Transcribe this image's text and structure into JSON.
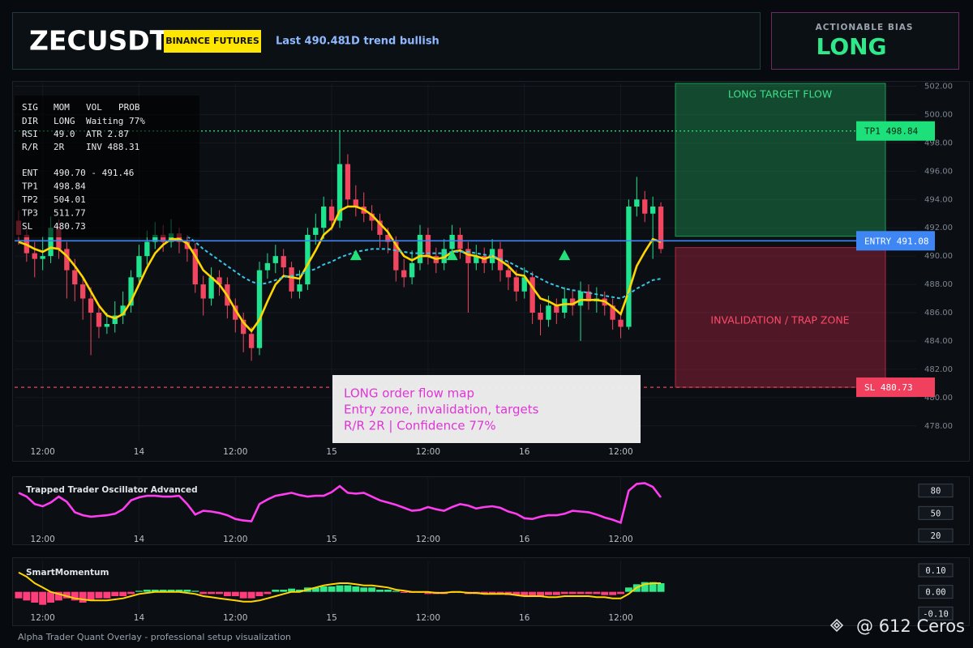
{
  "header": {
    "symbol": "ZECUSDT",
    "exchange": "BINANCE FUTURES",
    "last": "Last 490.48",
    "trend": "1D trend bullish"
  },
  "bias": {
    "label": "ACTIONABLE BIAS",
    "value": "LONG"
  },
  "info_panel": {
    "header": [
      "SIG",
      "MOM",
      "VOL",
      "PROB"
    ],
    "rows": [
      [
        "DIR",
        "LONG",
        "Waiting 77%"
      ],
      [
        "RSI",
        "49.0",
        "ATR 2.87"
      ],
      [
        "R/R",
        "2R",
        "INV 488.31"
      ]
    ],
    "levels": [
      [
        "ENT",
        "490.70 - 491.46"
      ],
      [
        "TP1",
        "498.84"
      ],
      [
        "TP2",
        "504.01"
      ],
      [
        "TP3",
        "511.77"
      ],
      [
        "SL",
        "480.73"
      ]
    ]
  },
  "annotation": {
    "lines": [
      "LONG order flow map",
      "Entry zone, invalidation, targets",
      "R/R 2R | Confidence 77%"
    ]
  },
  "footer": "Alpha Trader Quant Overlay - professional setup visualization",
  "watermark": "@ 612 Ceros",
  "chart_data": [
    {
      "type": "candlestick",
      "categories": [
        null,
        null,
        null,
        "12:00",
        null,
        null,
        null,
        null,
        null,
        null,
        null,
        null,
        null,
        null,
        null,
        "14",
        null,
        null,
        null,
        null,
        null,
        null,
        null,
        null,
        null,
        null,
        null,
        "12:00",
        null,
        null,
        null,
        null,
        null,
        null,
        null,
        null,
        null,
        null,
        null,
        "15",
        null,
        null,
        null,
        null,
        null,
        null,
        null,
        null,
        null,
        null,
        null,
        "12:00",
        null,
        null,
        null,
        null,
        null,
        null,
        null,
        null,
        null,
        null,
        null,
        "16",
        null,
        null,
        null,
        null,
        null,
        null,
        null,
        null,
        null,
        null,
        null,
        "12:00",
        null,
        null,
        null,
        null,
        null
      ],
      "open": [
        492.5,
        491.5,
        490.2,
        489.8,
        490.0,
        492.0,
        490.5,
        489.0,
        488.0,
        487.0,
        486.0,
        485.0,
        485.2,
        485.8,
        486.5,
        488.5,
        490.0,
        491.0,
        491.5,
        491.0,
        491.6,
        491.0,
        490.5,
        488.0,
        487.0,
        488.5,
        488.0,
        486.5,
        485.5,
        484.5,
        483.5,
        489.0,
        489.5,
        490.0,
        489.2,
        487.5,
        488.0,
        491.5,
        492.0,
        493.5,
        492.5,
        496.5,
        494.0,
        493.5,
        493.0,
        492.5,
        491.5,
        491.0,
        489.0,
        488.5,
        489.5,
        491.5,
        490.0,
        489.5,
        490.5,
        491.5,
        490.5,
        489.5,
        490.0,
        489.5,
        490.5,
        489.0,
        488.5,
        487.5,
        488.5,
        486.0,
        485.5,
        486.5,
        486.0,
        487.0,
        486.5,
        487.5,
        486.8,
        487.0,
        486.5,
        485.5,
        485.0,
        493.5,
        494.0,
        493.0,
        493.5
      ],
      "high": [
        493.2,
        492.0,
        491.0,
        491.4,
        492.8,
        492.6,
        491.0,
        489.8,
        488.6,
        487.8,
        486.6,
        486.0,
        486.8,
        487.5,
        489.0,
        490.8,
        491.8,
        492.4,
        492.2,
        492.6,
        492.0,
        491.5,
        490.9,
        488.6,
        489.2,
        489.0,
        488.5,
        487.0,
        486.0,
        485.0,
        489.6,
        490.2,
        490.8,
        490.5,
        489.6,
        489.0,
        492.0,
        493.0,
        494.2,
        494.0,
        498.8,
        497.2,
        495.0,
        494.5,
        493.6,
        493.0,
        492.0,
        491.4,
        489.8,
        490.4,
        492.2,
        492.0,
        490.6,
        491.2,
        492.2,
        492.0,
        491.0,
        490.8,
        490.6,
        491.2,
        491.0,
        489.6,
        489.0,
        489.2,
        488.9,
        486.6,
        487.2,
        487.0,
        487.8,
        487.6,
        488.2,
        488.0,
        487.8,
        487.5,
        487.0,
        486.0,
        494.0,
        495.6,
        494.6,
        494.2,
        493.8
      ],
      "low": [
        490.8,
        489.6,
        488.5,
        489.0,
        489.5,
        489.8,
        487.0,
        486.8,
        485.5,
        483.0,
        484.2,
        484.5,
        484.6,
        485.2,
        486.0,
        488.0,
        489.4,
        490.5,
        490.3,
        490.6,
        490.2,
        489.6,
        487.4,
        485.8,
        486.5,
        487.2,
        485.6,
        484.6,
        483.2,
        482.6,
        483.0,
        488.4,
        488.8,
        488.5,
        487.0,
        487.0,
        487.6,
        490.8,
        491.2,
        491.8,
        492.0,
        493.5,
        492.8,
        492.4,
        491.8,
        490.6,
        490.2,
        488.2,
        487.8,
        488.0,
        489.0,
        489.4,
        488.8,
        489.0,
        490.0,
        489.8,
        486.0,
        489.0,
        488.8,
        489.0,
        488.2,
        487.6,
        486.8,
        487.0,
        485.2,
        484.4,
        485.0,
        485.2,
        485.6,
        485.8,
        484.0,
        486.2,
        486.0,
        485.8,
        484.8,
        484.2,
        484.8,
        492.8,
        492.4,
        489.8,
        490.2
      ],
      "close": [
        491.5,
        490.2,
        489.8,
        490.0,
        492.0,
        490.5,
        489.0,
        488.0,
        487.0,
        486.0,
        485.0,
        485.2,
        485.8,
        486.5,
        488.5,
        490.0,
        491.0,
        491.5,
        491.0,
        491.6,
        491.0,
        490.5,
        488.0,
        487.0,
        488.5,
        488.0,
        486.5,
        485.5,
        484.5,
        483.5,
        489.0,
        489.5,
        490.0,
        489.2,
        487.5,
        488.0,
        491.5,
        492.0,
        493.5,
        492.5,
        496.5,
        494.0,
        493.5,
        493.0,
        492.5,
        491.5,
        491.0,
        489.0,
        488.5,
        489.5,
        491.5,
        490.0,
        489.5,
        490.5,
        491.5,
        490.5,
        489.5,
        490.0,
        489.5,
        490.5,
        489.0,
        488.5,
        487.5,
        488.5,
        486.0,
        485.5,
        486.5,
        486.0,
        487.0,
        486.5,
        487.5,
        486.8,
        487.0,
        486.5,
        485.5,
        485.0,
        493.5,
        494.0,
        493.0,
        493.5,
        490.5
      ],
      "up_color": "#1fe38e",
      "down_color": "#f0465f",
      "series": [
        {
          "color": "#ffd600",
          "style": "solid",
          "values": [
            491.0,
            490.8,
            490.5,
            490.3,
            490.6,
            490.5,
            490.0,
            489.3,
            488.5,
            487.5,
            486.5,
            485.8,
            485.6,
            485.9,
            486.8,
            488.0,
            489.2,
            490.2,
            490.8,
            491.2,
            491.2,
            490.9,
            490.0,
            489.0,
            488.5,
            488.0,
            487.2,
            486.2,
            485.3,
            484.7,
            485.5,
            486.8,
            488.0,
            488.6,
            488.5,
            488.4,
            489.4,
            490.4,
            491.5,
            492.0,
            493.2,
            493.5,
            493.5,
            493.3,
            492.9,
            492.3,
            491.7,
            490.8,
            490.0,
            489.7,
            490.0,
            490.0,
            489.8,
            489.9,
            490.3,
            490.4,
            490.1,
            490.0,
            489.8,
            490.0,
            489.7,
            489.3,
            488.7,
            488.6,
            487.8,
            487.0,
            486.8,
            486.5,
            486.6,
            486.6,
            486.9,
            486.9,
            486.9,
            486.8,
            486.4,
            485.9,
            487.5,
            489.3,
            490.3,
            491.2,
            491.0
          ]
        },
        {
          "color": "#36c6e6",
          "style": "dashed",
          "values": [
            null,
            null,
            null,
            null,
            null,
            null,
            null,
            null,
            null,
            null,
            null,
            null,
            null,
            null,
            null,
            null,
            null,
            null,
            null,
            null,
            null,
            491.4,
            491.0,
            490.5,
            490.1,
            489.7,
            489.3,
            488.9,
            488.5,
            488.2,
            488.0,
            488.1,
            488.3,
            488.5,
            488.6,
            488.7,
            488.9,
            489.1,
            489.4,
            489.6,
            489.9,
            490.1,
            490.3,
            490.4,
            490.5,
            490.5,
            490.5,
            490.4,
            490.3,
            490.2,
            490.2,
            490.2,
            490.2,
            490.2,
            490.3,
            490.3,
            490.3,
            490.2,
            490.1,
            490.0,
            489.8,
            489.6,
            489.3,
            489.0,
            488.7,
            488.4,
            488.1,
            487.9,
            487.7,
            487.6,
            487.5,
            487.4,
            487.3,
            487.2,
            487.1,
            487.0,
            487.3,
            487.7,
            488.0,
            488.3,
            488.4
          ]
        }
      ],
      "signals": {
        "color": "#22e07a",
        "values": [
          null,
          null,
          null,
          null,
          null,
          null,
          null,
          null,
          null,
          null,
          null,
          null,
          null,
          null,
          null,
          null,
          null,
          null,
          null,
          null,
          null,
          null,
          null,
          null,
          null,
          null,
          null,
          null,
          null,
          null,
          null,
          null,
          null,
          null,
          null,
          null,
          null,
          null,
          null,
          null,
          null,
          null,
          490.0,
          null,
          null,
          null,
          null,
          null,
          null,
          null,
          null,
          null,
          null,
          null,
          490.0,
          null,
          null,
          null,
          null,
          null,
          null,
          null,
          null,
          null,
          null,
          null,
          null,
          null,
          490.0,
          null,
          null,
          null,
          null,
          null,
          null,
          null,
          null,
          null,
          null,
          null,
          null
        ]
      },
      "zones": [
        {
          "label": "LONG TARGET FLOW",
          "from": 491.4,
          "to": 502.2,
          "color": "#1c9c55"
        },
        {
          "label": "INVALIDATION / TRAP ZONE",
          "from": 480.73,
          "to": 490.6,
          "color": "#b02540"
        }
      ],
      "levels": [
        {
          "name": "TP1",
          "value": 498.84,
          "color": "#1ee07a",
          "style": "dotted"
        },
        {
          "name": "ENTRY",
          "value": 491.08,
          "color": "#3f86f5",
          "style": "solid"
        },
        {
          "name": "SL",
          "value": 480.73,
          "color": "#f0405e",
          "style": "dashed"
        }
      ],
      "ylim": [
        476.9,
        502.2
      ],
      "yticks": [
        {
          "value": 478,
          "label": "478.00"
        },
        {
          "value": 480,
          "label": "480.00"
        },
        {
          "value": 482,
          "label": "482.00"
        },
        {
          "value": 484,
          "label": "484.00"
        },
        {
          "value": 486,
          "label": "486.00"
        },
        {
          "value": 488,
          "label": "488.00"
        },
        {
          "value": 490,
          "label": "490.00"
        },
        {
          "value": 492,
          "label": "492.00"
        },
        {
          "value": 494,
          "label": "494.00"
        },
        {
          "value": 496,
          "label": "496.00"
        },
        {
          "value": 498,
          "label": "498.00"
        },
        {
          "value": 500,
          "label": "500.00"
        },
        {
          "value": 502,
          "label": "502.00"
        }
      ],
      "grid": true
    },
    {
      "type": "line",
      "title": "Trapped Trader Oscillator Advanced",
      "color": "#ff3df0",
      "values": [
        77,
        72,
        62,
        59,
        64,
        72,
        65,
        51,
        47,
        45,
        46,
        47,
        49,
        55,
        67,
        71,
        73,
        73,
        72,
        72,
        73,
        62,
        48,
        53,
        52,
        50,
        47,
        42,
        40,
        39,
        62,
        68,
        73,
        75,
        77,
        74,
        72,
        73,
        73,
        78,
        86,
        77,
        76,
        77,
        72,
        67,
        64,
        61,
        57,
        53,
        54,
        58,
        55,
        53,
        58,
        62,
        60,
        56,
        58,
        59,
        57,
        52,
        49,
        43,
        42,
        45,
        47,
        47,
        49,
        53,
        52,
        51,
        48,
        44,
        41,
        37,
        80,
        89,
        90,
        85,
        71
      ],
      "ylim": [
        20,
        97
      ],
      "yticks": [
        80,
        50,
        20
      ]
    },
    {
      "type": "bar",
      "title": "SmartMomentum",
      "up_color": "#2ee88a",
      "down_color": "#ff3d7a",
      "values": [
        -0.03,
        -0.04,
        -0.05,
        -0.06,
        -0.05,
        -0.04,
        -0.03,
        -0.04,
        -0.05,
        -0.04,
        -0.03,
        -0.03,
        -0.02,
        -0.02,
        -0.01,
        0.005,
        0.01,
        0.01,
        0.01,
        0.01,
        0.01,
        0.01,
        0.005,
        -0.01,
        -0.01,
        -0.01,
        -0.02,
        -0.02,
        -0.03,
        -0.03,
        -0.02,
        -0.01,
        0.01,
        0.01,
        0.015,
        0.01,
        0.02,
        0.02,
        0.025,
        0.025,
        0.03,
        0.03,
        0.025,
        0.02,
        0.02,
        0.01,
        0.01,
        0.005,
        -0.005,
        -0.005,
        -0.005,
        -0.01,
        -0.01,
        -0.01,
        -0.005,
        -0.005,
        -0.01,
        -0.01,
        -0.01,
        -0.01,
        -0.01,
        -0.015,
        -0.015,
        -0.02,
        -0.02,
        -0.02,
        -0.015,
        -0.015,
        -0.01,
        -0.01,
        -0.01,
        -0.01,
        -0.01,
        -0.015,
        -0.015,
        -0.01,
        0.02,
        0.035,
        0.045,
        0.045,
        0.04
      ],
      "line": {
        "color": "#ffd600",
        "values": [
          0.09,
          0.07,
          0.04,
          0.02,
          0.0,
          -0.01,
          -0.02,
          -0.03,
          -0.035,
          -0.04,
          -0.04,
          -0.04,
          -0.035,
          -0.03,
          -0.02,
          -0.01,
          -0.005,
          0.0,
          0.0,
          0.0,
          0.0,
          -0.005,
          -0.01,
          -0.02,
          -0.025,
          -0.03,
          -0.035,
          -0.04,
          -0.045,
          -0.045,
          -0.04,
          -0.03,
          -0.02,
          -0.01,
          0.0,
          0.0,
          0.01,
          0.02,
          0.03,
          0.035,
          0.04,
          0.04,
          0.035,
          0.03,
          0.03,
          0.025,
          0.02,
          0.01,
          0.005,
          0.0,
          0.0,
          0.0,
          -0.005,
          -0.005,
          0.0,
          0.0,
          -0.005,
          -0.005,
          -0.01,
          -0.01,
          -0.01,
          -0.01,
          -0.015,
          -0.02,
          -0.02,
          -0.02,
          -0.025,
          -0.025,
          -0.02,
          -0.02,
          -0.02,
          -0.02,
          -0.025,
          -0.025,
          -0.03,
          -0.03,
          -0.01,
          0.02,
          0.035,
          0.04,
          0.04
        ]
      },
      "ylim": [
        -0.11,
        0.145
      ],
      "yticks": [
        {
          "value": 0.1,
          "label": "0.10"
        },
        {
          "value": 0,
          "label": "0.00"
        },
        {
          "value": -0.1,
          "label": "-0.10"
        }
      ]
    }
  ]
}
